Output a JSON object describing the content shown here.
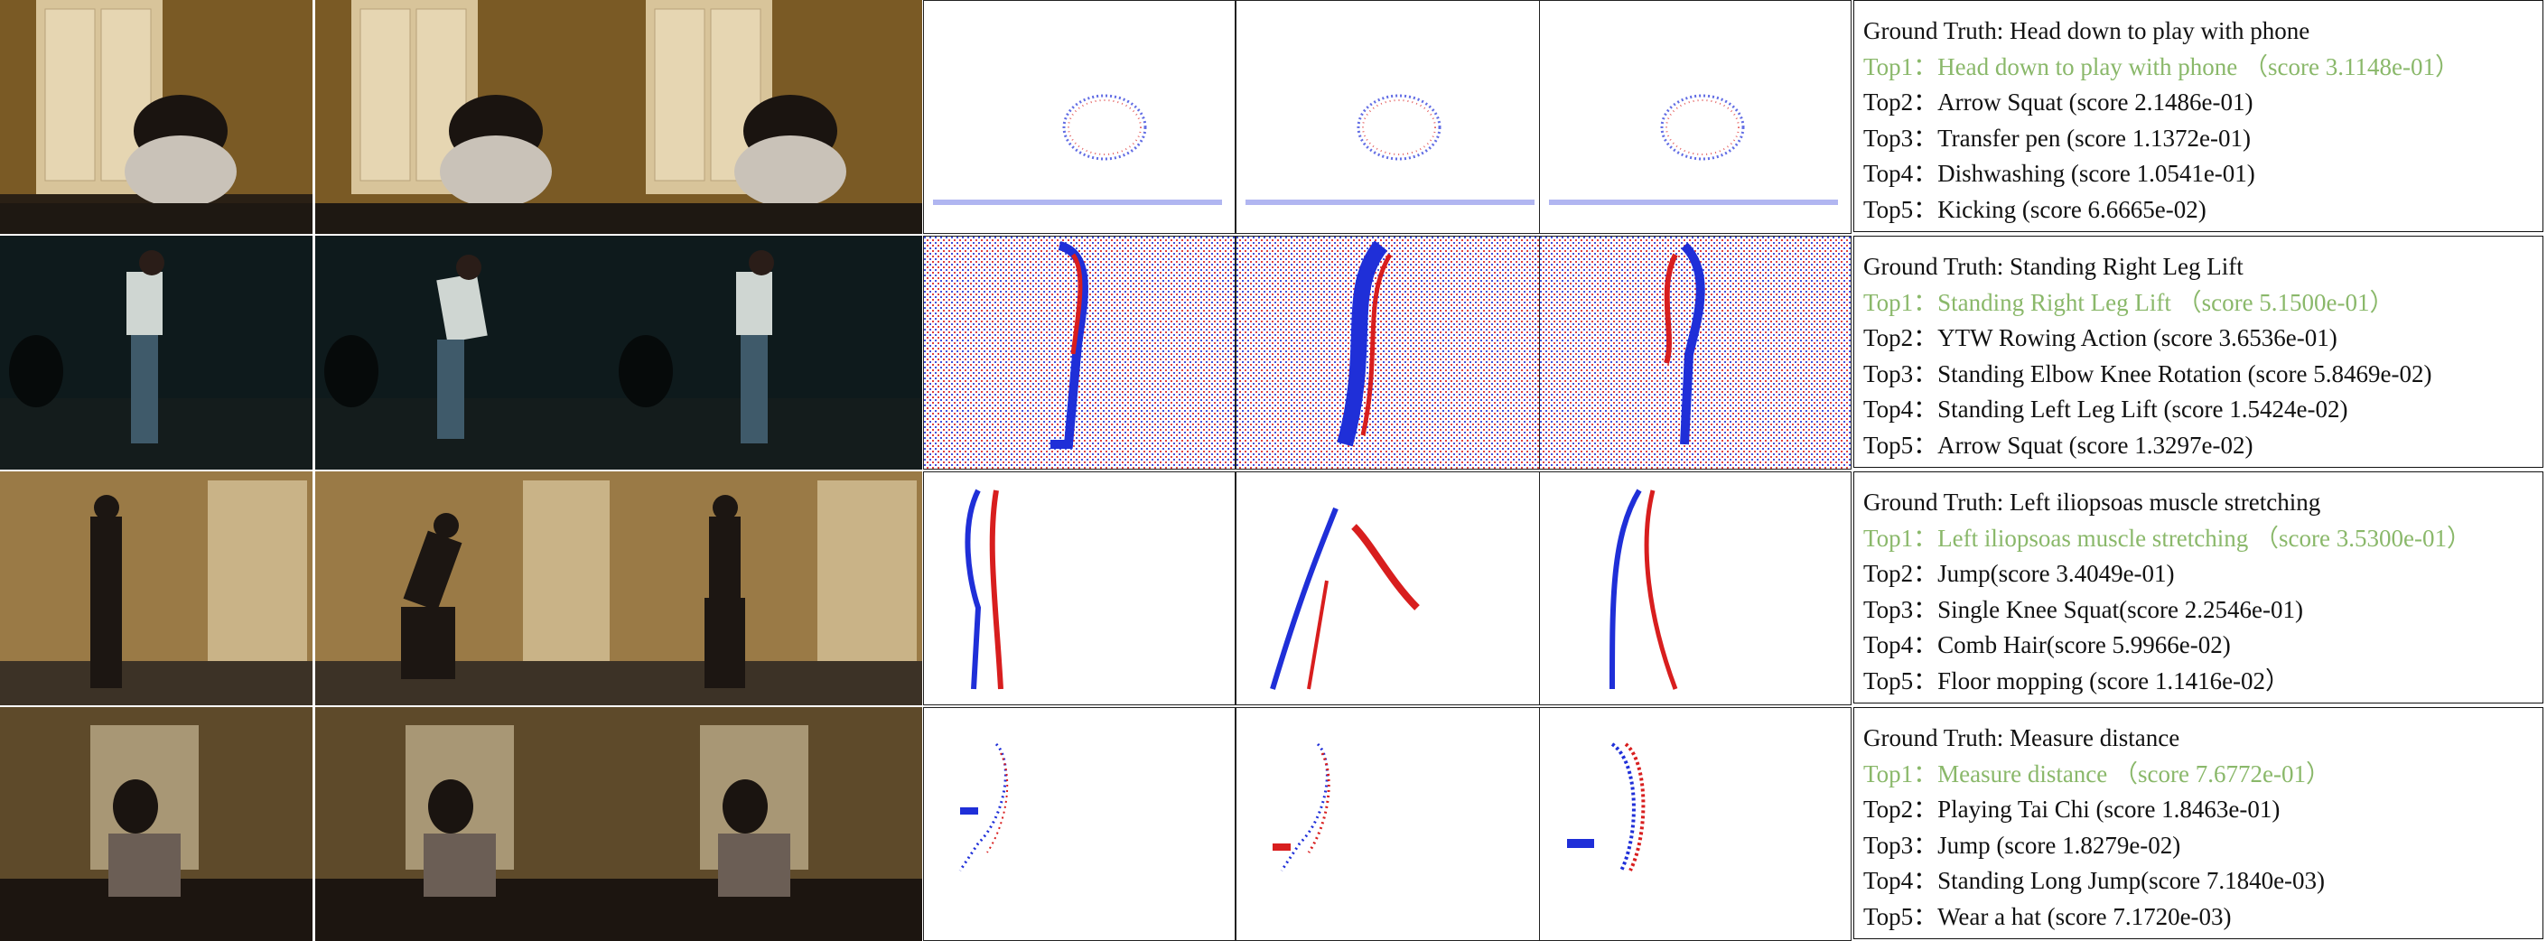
{
  "rows": [
    {
      "ground_truth": "Ground Truth: Head down to play with phone",
      "predictions": [
        "Top1：Head down to play with phone （score 3.1148e-01）",
        "Top2：Arrow Squat (score 2.1486e-01)",
        "Top3：Transfer pen (score 1.1372e-01)",
        "Top4：Dishwashing (score 1.0541e-01)",
        "Top5：Kicking (score 6.6665e-02)"
      ]
    },
    {
      "ground_truth": "Ground Truth: Standing Right Leg Lift",
      "predictions": [
        "Top1：Standing Right Leg Lift （score 5.1500e-01）",
        "Top2：YTW Rowing Action (score 3.6536e-01)",
        "Top3：Standing Elbow Knee Rotation (score 5.8469e-02)",
        "Top4：Standing Left Leg Lift (score 1.5424e-02)",
        "Top5：Arrow Squat (score 1.3297e-02)"
      ]
    },
    {
      "ground_truth": "Ground Truth: Left iliopsoas muscle stretching",
      "predictions": [
        "Top1：Left iliopsoas muscle stretching （score 3.5300e-01）",
        "Top2：Jump(score 3.4049e-01)",
        "Top3：Single Knee Squat(score 2.2546e-01)",
        "Top4：Comb Hair(score 5.9966e-02)",
        "Top5：Floor mopping (score 1.1416e-02）"
      ]
    },
    {
      "ground_truth": "Ground Truth: Measure distance",
      "predictions": [
        "Top1：Measure distance （score 7.6772e-01）",
        "Top2：Playing Tai Chi (score 1.8463e-01)",
        "Top3：Jump (score 1.8279e-02)",
        "Top4：Standing Long Jump(score 7.1840e-03)",
        "Top5：Wear a hat (score 7.1720e-03)"
      ]
    }
  ],
  "colors": {
    "top1": "#8ab86a",
    "event_positive": "#d81e1e",
    "event_negative": "#1f2fd8"
  }
}
